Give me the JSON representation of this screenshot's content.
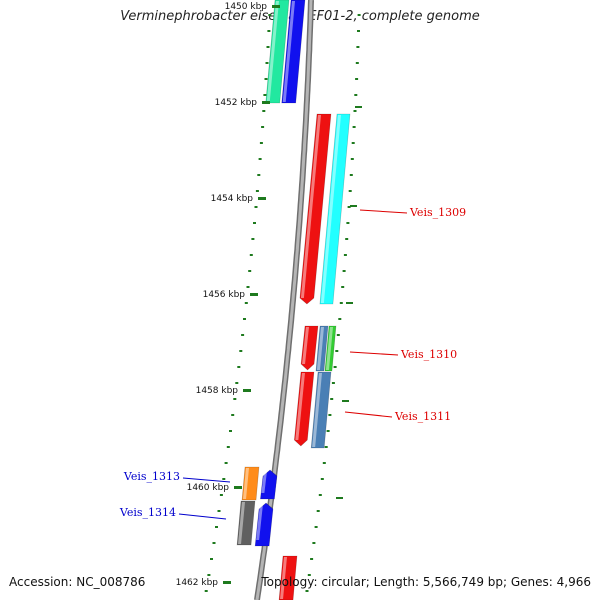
{
  "title": "Verminephrobacter eiseniae EF01-2, complete genome",
  "footer": {
    "accession": "Accession: NC_008786",
    "summary": "Topology: circular; Length: 5,566,749 bp; Genes: 4,966"
  },
  "ticks": [
    {
      "label": "1450 kbp"
    },
    {
      "label": "1452 kbp"
    },
    {
      "label": "1454 kbp"
    },
    {
      "label": "1456 kbp"
    },
    {
      "label": "1458 kbp"
    },
    {
      "label": "1460 kbp"
    },
    {
      "label": "1462 kbp"
    }
  ],
  "colors": {
    "backbone": "#8a8a8a",
    "tick": "#1e7a1e",
    "red": "#ee1111",
    "cyan": "#22ffff",
    "blue": "#1111ee",
    "teal": "#22e8a0",
    "steel": "#4a7fb5",
    "green": "#33cc33",
    "orange": "#ff8c1a",
    "gray": "#606060",
    "label_red": "#dd0000",
    "label_blue": "#0000cc"
  },
  "genes": [
    {
      "color": "teal"
    },
    {
      "color": "blue"
    },
    {
      "color": "red"
    },
    {
      "color": "cyan"
    },
    {
      "color": "red"
    },
    {
      "color": "steel"
    },
    {
      "color": "green"
    },
    {
      "color": "red"
    },
    {
      "color": "steel"
    },
    {
      "color": "orange"
    },
    {
      "color": "gray"
    },
    {
      "color": "blue"
    },
    {
      "color": "blue"
    },
    {
      "color": "red"
    },
    {
      "color": "gray"
    }
  ],
  "labels": [
    {
      "text": "Veis_1309",
      "color": "label_red"
    },
    {
      "text": "Veis_1310",
      "color": "label_red"
    },
    {
      "text": "Veis_1311",
      "color": "label_red"
    },
    {
      "text": "Veis_1313",
      "color": "label_blue"
    },
    {
      "text": "Veis_1314",
      "color": "label_blue"
    }
  ]
}
